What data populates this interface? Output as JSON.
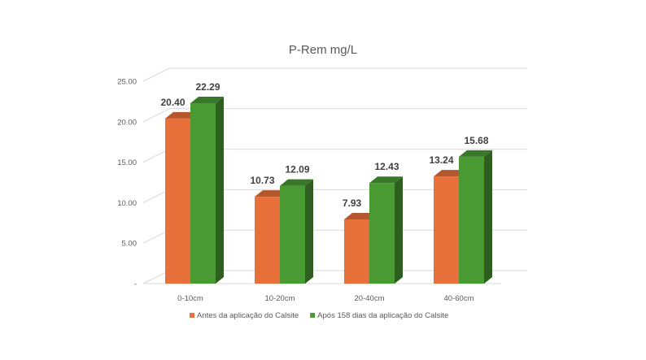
{
  "chart_data": {
    "type": "bar",
    "title": "P-Rem mg/L",
    "xlabel": "",
    "ylabel": "",
    "categories": [
      "0-10cm",
      "10-20cm",
      "20-40cm",
      "40-60cm"
    ],
    "series": [
      {
        "name": "Antes da aplicação do Calsite",
        "values": [
          20.4,
          10.73,
          7.93,
          13.24
        ],
        "labels": [
          "20.40",
          "10.73",
          "7.93",
          "13.24"
        ],
        "color": "#E8703A"
      },
      {
        "name": "Após 158 dias da aplicação do Calsite",
        "values": [
          22.29,
          12.09,
          12.43,
          15.68
        ],
        "labels": [
          "22.29",
          "12.09",
          "12.43",
          "15.68"
        ],
        "color": "#4A9A34"
      }
    ],
    "ylim": [
      0,
      25
    ],
    "yticks": [
      0,
      5,
      10,
      15,
      20,
      25
    ],
    "ytick_labels": [
      "-",
      "5.00",
      "10.00",
      "15.00",
      "20.00",
      "25.00"
    ],
    "grid": true,
    "legend_position": "bottom",
    "style": "3d-clustered-column"
  }
}
